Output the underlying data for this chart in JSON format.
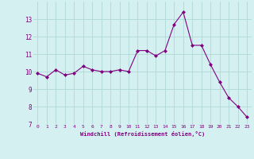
{
  "x": [
    0,
    1,
    2,
    3,
    4,
    5,
    6,
    7,
    8,
    9,
    10,
    11,
    12,
    13,
    14,
    15,
    16,
    17,
    18,
    19,
    20,
    21,
    22,
    23
  ],
  "y": [
    9.9,
    9.7,
    10.1,
    9.8,
    9.9,
    10.3,
    10.1,
    10.0,
    10.0,
    10.1,
    10.0,
    11.2,
    11.2,
    10.9,
    11.2,
    12.7,
    13.4,
    11.5,
    11.5,
    10.4,
    9.4,
    8.5,
    8.0,
    7.4
  ],
  "xlabel": "Windchill (Refroidissement éolien,°C)",
  "ylim": [
    7,
    14
  ],
  "xlim": [
    -0.5,
    23.5
  ],
  "yticks": [
    7,
    8,
    9,
    10,
    11,
    12,
    13
  ],
  "xticks": [
    0,
    1,
    2,
    3,
    4,
    5,
    6,
    7,
    8,
    9,
    10,
    11,
    12,
    13,
    14,
    15,
    16,
    17,
    18,
    19,
    20,
    21,
    22,
    23
  ],
  "line_color": "#800080",
  "marker": "D",
  "marker_size": 2.0,
  "background_color": "#d4f0f0",
  "grid_color": "#b0d8d8",
  "tick_label_color": "#800080",
  "xlabel_color": "#800080"
}
